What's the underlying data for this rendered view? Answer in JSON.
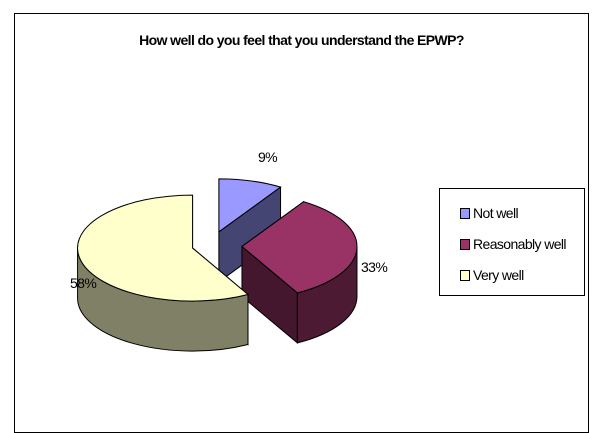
{
  "chart_data": {
    "type": "pie",
    "title": "How well do you feel that you understand the EPWP?",
    "labels": [
      "Not well",
      "Reasonably well",
      "Very well"
    ],
    "values": [
      9,
      33,
      58
    ],
    "value_labels": [
      "9%",
      "33%",
      "58%"
    ],
    "colors": [
      "#9999ff",
      "#993366",
      "#ffffcc"
    ],
    "style": "3D exploded",
    "legend_position": "right"
  }
}
